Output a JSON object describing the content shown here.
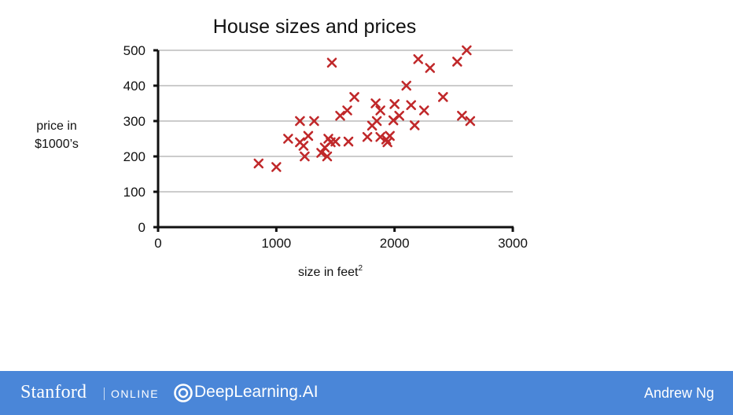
{
  "chart_data": {
    "type": "scatter",
    "title": "House sizes and prices",
    "xlabel": "size in feet",
    "xlabel_superscript": "2",
    "ylabel_lines": [
      "price in",
      "$1000’s"
    ],
    "xlim": [
      0,
      3000
    ],
    "ylim": [
      0,
      500
    ],
    "x_ticks": [
      0,
      1000,
      2000,
      3000
    ],
    "y_ticks": [
      0,
      100,
      200,
      300,
      400,
      500
    ],
    "grid": "horizontal",
    "marker": "x",
    "marker_color": "#c0282a",
    "points": [
      {
        "x": 850,
        "y": 180
      },
      {
        "x": 1000,
        "y": 170
      },
      {
        "x": 1100,
        "y": 250
      },
      {
        "x": 1200,
        "y": 300
      },
      {
        "x": 1200,
        "y": 240
      },
      {
        "x": 1230,
        "y": 230
      },
      {
        "x": 1240,
        "y": 200
      },
      {
        "x": 1270,
        "y": 258
      },
      {
        "x": 1320,
        "y": 300
      },
      {
        "x": 1380,
        "y": 210
      },
      {
        "x": 1410,
        "y": 225
      },
      {
        "x": 1430,
        "y": 200
      },
      {
        "x": 1440,
        "y": 250
      },
      {
        "x": 1460,
        "y": 240
      },
      {
        "x": 1470,
        "y": 465
      },
      {
        "x": 1500,
        "y": 242
      },
      {
        "x": 1540,
        "y": 315
      },
      {
        "x": 1600,
        "y": 330
      },
      {
        "x": 1610,
        "y": 242
      },
      {
        "x": 1660,
        "y": 368
      },
      {
        "x": 1770,
        "y": 255
      },
      {
        "x": 1810,
        "y": 287
      },
      {
        "x": 1840,
        "y": 350
      },
      {
        "x": 1850,
        "y": 300
      },
      {
        "x": 1880,
        "y": 330
      },
      {
        "x": 1880,
        "y": 255
      },
      {
        "x": 1930,
        "y": 248
      },
      {
        "x": 1940,
        "y": 240
      },
      {
        "x": 1960,
        "y": 258
      },
      {
        "x": 1990,
        "y": 302
      },
      {
        "x": 2000,
        "y": 348
      },
      {
        "x": 2040,
        "y": 315
      },
      {
        "x": 2100,
        "y": 400
      },
      {
        "x": 2140,
        "y": 345
      },
      {
        "x": 2170,
        "y": 288
      },
      {
        "x": 2200,
        "y": 475
      },
      {
        "x": 2250,
        "y": 330
      },
      {
        "x": 2300,
        "y": 450
      },
      {
        "x": 2410,
        "y": 368
      },
      {
        "x": 2530,
        "y": 468
      },
      {
        "x": 2570,
        "y": 315
      },
      {
        "x": 2610,
        "y": 500
      },
      {
        "x": 2640,
        "y": 300
      }
    ]
  },
  "footer": {
    "brand1": "Stanford",
    "brand1_sub": "ONLINE",
    "brand2_icon": "deeplearning-ai-logo-icon",
    "brand2": "DeepLearning.AI",
    "author": "Andrew Ng"
  }
}
